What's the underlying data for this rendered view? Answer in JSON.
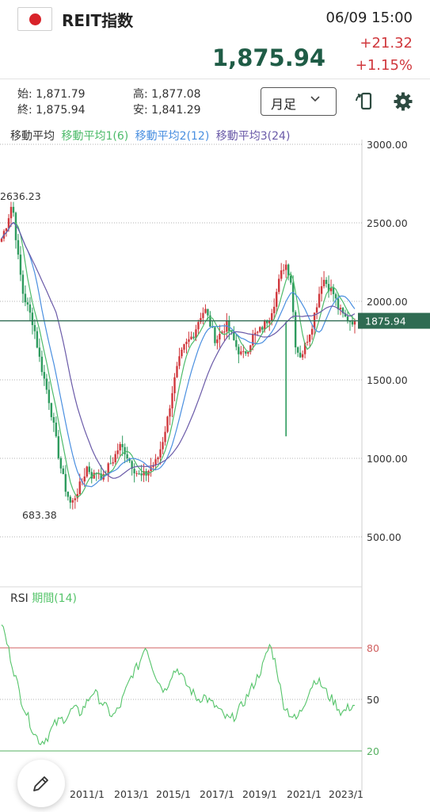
{
  "header": {
    "title": "REIT指数",
    "datetime": "06/09 15:00",
    "price": "1,875.94",
    "change": "+21.32",
    "change_pct": "+1.15%"
  },
  "ohlc": {
    "open_label": "始:",
    "open": "1,871.79",
    "close_label": "終:",
    "close": "1,875.94",
    "high_label": "高:",
    "high": "1,877.08",
    "low_label": "安:",
    "low": "1,841.29"
  },
  "toolbar": {
    "period_label": "月足"
  },
  "ma_legend": {
    "base": "移動平均",
    "ma1": "移動平均1(6)",
    "ma2": "移動平均2(12)",
    "ma3": "移動平均3(24)"
  },
  "rsi_legend": {
    "base": "RSI",
    "period": "期間(14)"
  },
  "colors": {
    "up": "#d0383d",
    "down": "#2e9b5e",
    "ma1": "#4dbb6a",
    "ma2": "#4a8fe0",
    "ma3": "#6a5aa8",
    "rsi": "#55c46a",
    "current_line": "#2f6b52",
    "rsi_80": "#d06060",
    "rsi_20": "#55b060"
  },
  "chart_data": [
    {
      "type": "candlestick",
      "title": "",
      "ylim": [
        0,
        3000
      ],
      "y_ticks": [
        "3000.00",
        "2500.00",
        "2000.00",
        "1500.00",
        "1000.00",
        "500.00"
      ],
      "x_ticks": [
        "2011/1",
        "2013/1",
        "2015/1",
        "2017/1",
        "2019/1",
        "2021/1",
        "2023/1"
      ],
      "current_value": 1875.94,
      "current_label": "1875.94",
      "annotations": [
        {
          "label": "2636.23",
          "value": 2636.23
        },
        {
          "label": "683.38",
          "value": 683.38
        }
      ],
      "series_approx": [
        2400,
        2500,
        2636,
        2300,
        2050,
        1950,
        1850,
        1650,
        1500,
        1350,
        1150,
        950,
        800,
        700,
        780,
        850,
        950,
        880,
        920,
        870,
        950,
        1000,
        1080,
        1050,
        980,
        920,
        880,
        900,
        950,
        980,
        1100,
        1250,
        1450,
        1600,
        1700,
        1750,
        1800,
        1900,
        1950,
        1850,
        1750,
        1800,
        1850,
        1780,
        1700,
        1650,
        1700,
        1780,
        1800,
        1850,
        1900,
        2000,
        2150,
        2250,
        2150,
        1700,
        1650,
        1750,
        1850,
        2000,
        2150,
        2100,
        2050,
        1950,
        1900,
        1880,
        1876
      ]
    },
    {
      "type": "line",
      "title": "",
      "ylim": [
        0,
        100
      ],
      "y_ticks": [
        "80",
        "50",
        "20"
      ],
      "levels": [
        80,
        50,
        20
      ],
      "series_approx": [
        95,
        80,
        65,
        50,
        40,
        30,
        25,
        28,
        35,
        38,
        40,
        45,
        42,
        48,
        55,
        50,
        45,
        40,
        45,
        55,
        65,
        70,
        82,
        70,
        60,
        55,
        65,
        68,
        60,
        55,
        50,
        52,
        48,
        45,
        40,
        38,
        42,
        48,
        55,
        62,
        70,
        82,
        70,
        48,
        42,
        38,
        45,
        55,
        62,
        58,
        52,
        48,
        42,
        45,
        47
      ]
    }
  ]
}
